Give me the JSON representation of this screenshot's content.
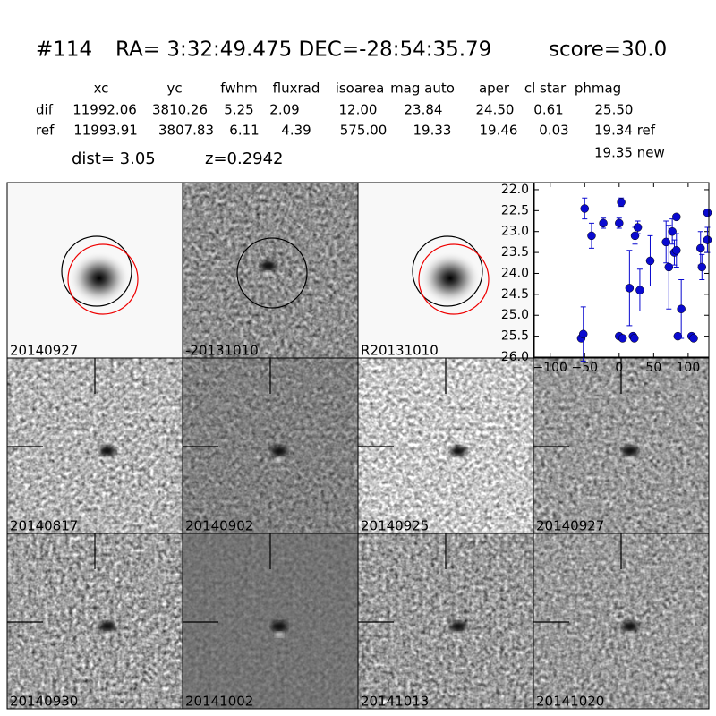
{
  "header": {
    "id": "#114",
    "coords": "RA= 3:32:49.475 DEC=-28:54:35.79",
    "score": "score=30.0"
  },
  "table": {
    "columns": [
      "xc",
      "yc",
      "fwhm",
      "fluxrad",
      "isoarea",
      "mag auto",
      "aper",
      "cl star",
      "phmag"
    ],
    "rows": [
      [
        "dif",
        "11992.06",
        "3810.26",
        "5.25",
        "2.09",
        "12.00",
        "23.84",
        "24.50",
        "0.61",
        "25.50"
      ],
      [
        "ref",
        "11993.91",
        "3807.83",
        "6.11",
        "4.39",
        "575.00",
        "19.33",
        "19.46",
        "0.03",
        "19.34 ref"
      ]
    ],
    "extra": "19.35 new",
    "dist": "dist=  3.05",
    "z": "z=0.2942"
  },
  "stamps": {
    "labels": [
      "20140927",
      "-20131010",
      "R20131010",
      "20140817",
      "20140902",
      "20140925",
      "20140927",
      "20140930",
      "20141002",
      "20141013",
      "20141020"
    ]
  },
  "chart_data": {
    "type": "scatter",
    "xlim": [
      -123,
      130
    ],
    "xticks": [
      {
        "value": -100,
        "label": "−100"
      },
      {
        "value": -50,
        "label": "−50"
      },
      0,
      50,
      100
    ],
    "ylim": [
      26.0,
      21.83
    ],
    "yticks": [
      {
        "value": 22.0,
        "label": "22.0"
      },
      {
        "value": 22.5,
        "label": "22.5"
      },
      {
        "value": 23.0,
        "label": "23.0"
      },
      {
        "value": 23.5,
        "label": "23.5"
      },
      {
        "value": 24.0,
        "label": "24.0"
      },
      {
        "value": 24.5,
        "label": "24.5"
      },
      {
        "value": 25.0,
        "label": "25.0"
      },
      {
        "value": 25.5,
        "label": "25.5"
      },
      {
        "value": 26.0,
        "label": "26.0"
      }
    ],
    "series": [
      {
        "color": "#0a0ad0",
        "x": [
          -55,
          -52,
          -50,
          -40,
          -23,
          0,
          3,
          0,
          5,
          15,
          20,
          22,
          23,
          27,
          30,
          45,
          68,
          72,
          77,
          80,
          83,
          83,
          85,
          90,
          105,
          108,
          118,
          120,
          128,
          128
        ],
        "values": [
          25.55,
          25.45,
          22.45,
          23.1,
          22.8,
          22.8,
          22.3,
          25.5,
          25.55,
          24.35,
          25.5,
          25.55,
          23.1,
          22.9,
          24.4,
          23.7,
          23.25,
          23.85,
          23.0,
          23.5,
          22.65,
          23.45,
          25.5,
          24.85,
          25.5,
          25.55,
          23.4,
          23.85,
          22.55,
          23.2
        ],
        "errors": [
          0.05,
          0.65,
          0.25,
          0.3,
          0.12,
          0.12,
          0.1,
          0.05,
          0.05,
          0.9,
          0.05,
          0.05,
          0.2,
          0.15,
          0.5,
          0.6,
          0.5,
          1.0,
          0.3,
          0.3,
          0.05,
          0.4,
          0.05,
          0.7,
          0.05,
          0.05,
          0.4,
          0.3,
          0.05,
          0.3
        ]
      }
    ]
  }
}
